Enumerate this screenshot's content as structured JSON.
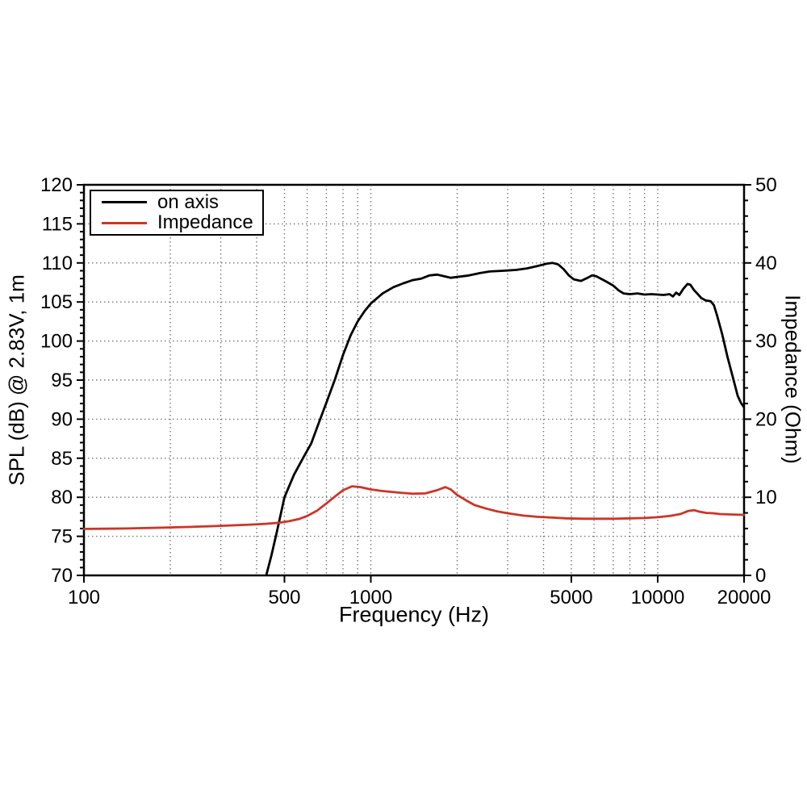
{
  "page": {
    "background": "#ffffff"
  },
  "chart_data": {
    "type": "line",
    "title": "",
    "xlabel": "Frequency (Hz)",
    "ylabel_left": "SPL (dB) @ 2.83V, 1m",
    "ylabel_right": "Impedance (Ohm)",
    "x_scale": "log",
    "x_range": [
      100,
      20000
    ],
    "y_left_range": [
      70,
      120
    ],
    "y_right_range": [
      0,
      50
    ],
    "x_major_ticks": [
      100,
      500,
      1000,
      5000,
      10000,
      20000
    ],
    "x_grid_lines": [
      200,
      300,
      400,
      500,
      600,
      700,
      800,
      900,
      1000,
      2000,
      3000,
      4000,
      5000,
      6000,
      7000,
      8000,
      9000,
      10000
    ],
    "y_left_major_step": 5,
    "y_left_minor_step": 1,
    "y_right_major_step": 10,
    "y_right_minor_step": 2,
    "grid_style": "dotted",
    "legend": {
      "position": "top-left",
      "entries": [
        {
          "label": "on axis"
        },
        {
          "label": "Impedance"
        }
      ]
    },
    "colors": {
      "axis": "#000000",
      "grid": "#787878",
      "background": "#ffffff",
      "on_axis": "#000000",
      "impedance": "#cc3528"
    },
    "series": [
      {
        "name": "on axis",
        "axis": "left",
        "unit": "dB",
        "color": "#000000",
        "points": [
          [
            432,
            70
          ],
          [
            450,
            72.5
          ],
          [
            470,
            75.5
          ],
          [
            500,
            80
          ],
          [
            540,
            82.9
          ],
          [
            580,
            85.0
          ],
          [
            620,
            86.9
          ],
          [
            660,
            89.6
          ],
          [
            700,
            92.1
          ],
          [
            750,
            95.1
          ],
          [
            800,
            98.2
          ],
          [
            850,
            100.7
          ],
          [
            900,
            102.5
          ],
          [
            950,
            103.8
          ],
          [
            1000,
            104.8
          ],
          [
            1100,
            106.1
          ],
          [
            1200,
            106.9
          ],
          [
            1300,
            107.4
          ],
          [
            1400,
            107.8
          ],
          [
            1500,
            108.0
          ],
          [
            1600,
            108.4
          ],
          [
            1700,
            108.5
          ],
          [
            1800,
            108.3
          ],
          [
            1900,
            108.1
          ],
          [
            2000,
            108.2
          ],
          [
            2200,
            108.4
          ],
          [
            2400,
            108.7
          ],
          [
            2600,
            108.9
          ],
          [
            2900,
            109.0
          ],
          [
            3200,
            109.1
          ],
          [
            3500,
            109.3
          ],
          [
            3800,
            109.6
          ],
          [
            4100,
            109.9
          ],
          [
            4300,
            110.0
          ],
          [
            4500,
            109.8
          ],
          [
            4700,
            109.2
          ],
          [
            4900,
            108.4
          ],
          [
            5100,
            107.9
          ],
          [
            5400,
            107.7
          ],
          [
            5700,
            108.1
          ],
          [
            5900,
            108.4
          ],
          [
            6100,
            108.3
          ],
          [
            6400,
            107.9
          ],
          [
            6700,
            107.5
          ],
          [
            7000,
            107.1
          ],
          [
            7300,
            106.5
          ],
          [
            7600,
            106.1
          ],
          [
            8000,
            106.0
          ],
          [
            8500,
            106.1
          ],
          [
            9000,
            105.95
          ],
          [
            9500,
            106.0
          ],
          [
            10000,
            105.95
          ],
          [
            10500,
            105.9
          ],
          [
            11000,
            106.0
          ],
          [
            11300,
            105.7
          ],
          [
            11600,
            106.2
          ],
          [
            11900,
            105.9
          ],
          [
            12300,
            106.7
          ],
          [
            12700,
            107.3
          ],
          [
            13000,
            107.2
          ],
          [
            13400,
            106.5
          ],
          [
            13800,
            106.0
          ],
          [
            14200,
            105.5
          ],
          [
            14700,
            105.2
          ],
          [
            15300,
            105.1
          ],
          [
            15700,
            104.6
          ],
          [
            16100,
            103.3
          ],
          [
            16800,
            100.8
          ],
          [
            17500,
            98.0
          ],
          [
            18300,
            95.3
          ],
          [
            19000,
            93.0
          ],
          [
            19500,
            92.1
          ],
          [
            20000,
            91.5
          ]
        ]
      },
      {
        "name": "Impedance",
        "axis": "right",
        "unit": "Ohm",
        "color": "#cc3528",
        "points": [
          [
            100,
            5.95
          ],
          [
            140,
            6.0
          ],
          [
            180,
            6.1
          ],
          [
            230,
            6.2
          ],
          [
            280,
            6.3
          ],
          [
            330,
            6.4
          ],
          [
            380,
            6.5
          ],
          [
            430,
            6.6
          ],
          [
            480,
            6.75
          ],
          [
            520,
            6.95
          ],
          [
            560,
            7.2
          ],
          [
            600,
            7.6
          ],
          [
            650,
            8.3
          ],
          [
            700,
            9.2
          ],
          [
            750,
            10.1
          ],
          [
            800,
            10.9
          ],
          [
            860,
            11.4
          ],
          [
            920,
            11.3
          ],
          [
            1000,
            11.0
          ],
          [
            1100,
            10.8
          ],
          [
            1250,
            10.6
          ],
          [
            1400,
            10.45
          ],
          [
            1550,
            10.5
          ],
          [
            1700,
            10.9
          ],
          [
            1820,
            11.3
          ],
          [
            1900,
            11.0
          ],
          [
            2000,
            10.3
          ],
          [
            2150,
            9.6
          ],
          [
            2300,
            9.0
          ],
          [
            2500,
            8.6
          ],
          [
            2750,
            8.2
          ],
          [
            3000,
            7.95
          ],
          [
            3400,
            7.65
          ],
          [
            3800,
            7.5
          ],
          [
            4300,
            7.4
          ],
          [
            4800,
            7.3
          ],
          [
            5500,
            7.25
          ],
          [
            6300,
            7.25
          ],
          [
            7000,
            7.25
          ],
          [
            8000,
            7.3
          ],
          [
            9000,
            7.35
          ],
          [
            10000,
            7.45
          ],
          [
            11000,
            7.6
          ],
          [
            12000,
            7.85
          ],
          [
            12800,
            8.25
          ],
          [
            13400,
            8.35
          ],
          [
            14000,
            8.15
          ],
          [
            14800,
            8.0
          ],
          [
            15600,
            7.95
          ],
          [
            16500,
            7.85
          ],
          [
            18000,
            7.8
          ],
          [
            20000,
            7.75
          ]
        ]
      }
    ]
  }
}
